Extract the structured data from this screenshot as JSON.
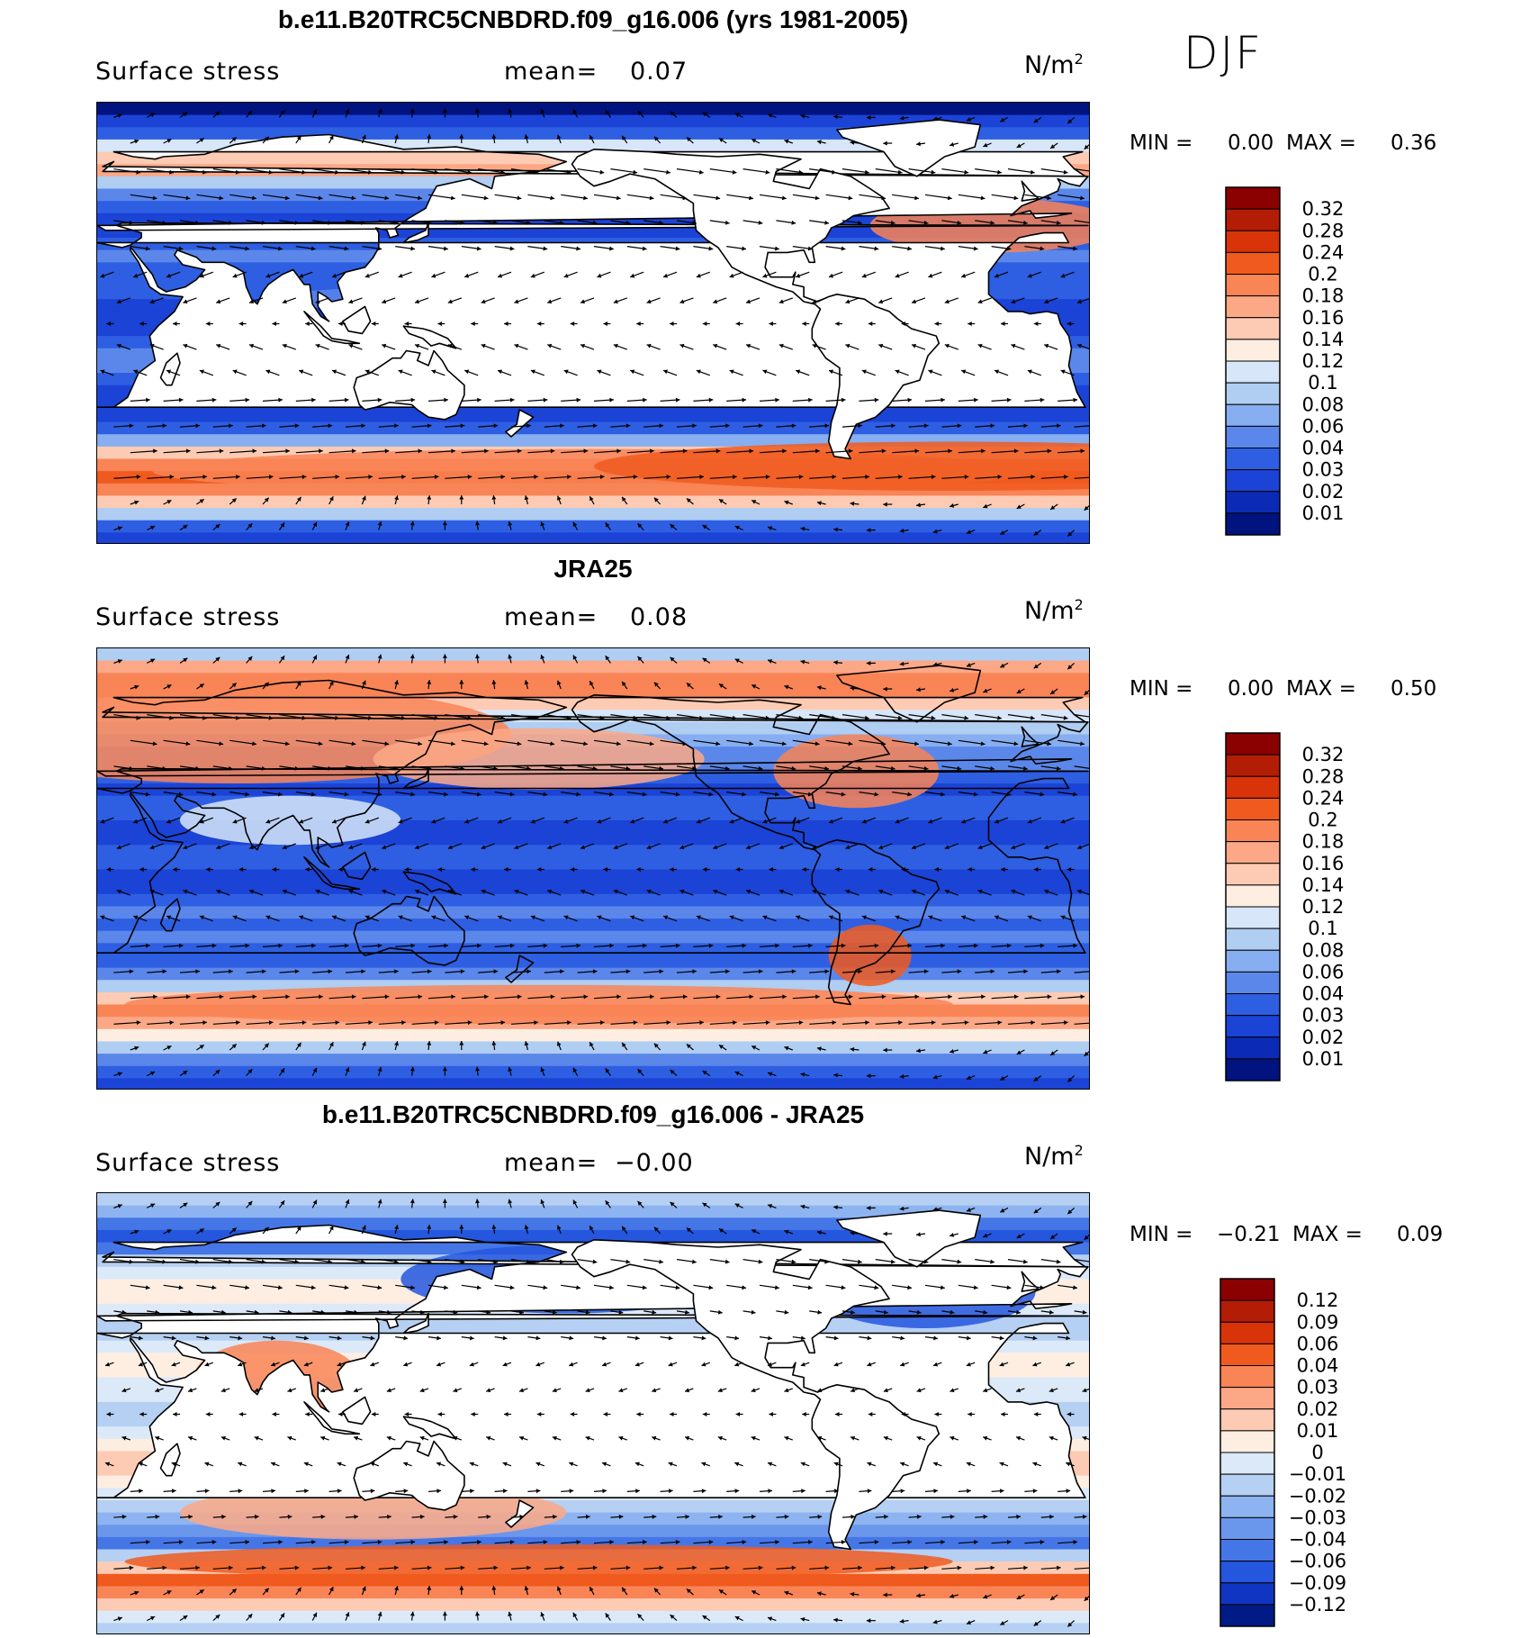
{
  "season": "DJF",
  "panels": [
    {
      "title": "b.e11.B20TRC5CNBDRD.f09_g16.006 (yrs 1981-2005)",
      "variable": "Surface stress",
      "mean_label": "mean=",
      "mean_value": "0.07",
      "units": "N/m",
      "units_exp": "2",
      "min_label": "MIN =",
      "min_value": "0.00",
      "max_label": "MAX =",
      "max_value": "0.36",
      "colorbar_labels": [
        "0.32",
        "0.28",
        "0.24",
        "0.2",
        "0.18",
        "0.16",
        "0.14",
        "0.12",
        "0.1",
        "0.08",
        "0.06",
        "0.04",
        "0.03",
        "0.02",
        "0.01"
      ],
      "palette": "positive"
    },
    {
      "title": "JRA25",
      "variable": "Surface stress",
      "mean_label": "mean=",
      "mean_value": "0.08",
      "units": "N/m",
      "units_exp": "2",
      "min_label": "MIN =",
      "min_value": "0.00",
      "max_label": "MAX =",
      "max_value": "0.50",
      "colorbar_labels": [
        "0.32",
        "0.28",
        "0.24",
        "0.2",
        "0.18",
        "0.16",
        "0.14",
        "0.12",
        "0.1",
        "0.08",
        "0.06",
        "0.04",
        "0.03",
        "0.02",
        "0.01"
      ],
      "palette": "positive"
    },
    {
      "title": "b.e11.B20TRC5CNBDRD.f09_g16.006 - JRA25",
      "variable": "Surface stress",
      "mean_label": "mean=",
      "mean_value": "−0.00",
      "units": "N/m",
      "units_exp": "2",
      "min_label": "MIN =",
      "min_value": "−0.21",
      "max_label": "MAX =",
      "max_value": "0.09",
      "colorbar_labels": [
        "0.12",
        "0.09",
        "0.06",
        "0.04",
        "0.03",
        "0.02",
        "0.01",
        "0",
        "−0.01",
        "−0.02",
        "−0.03",
        "−0.04",
        "−0.06",
        "−0.09",
        "−0.12"
      ],
      "palette": "difference"
    }
  ],
  "colors": {
    "positive": [
      "#8b0000",
      "#b31d06",
      "#d9330a",
      "#f05a1e",
      "#f98456",
      "#fca886",
      "#fdcbb3",
      "#feeee2",
      "#d7e6f8",
      "#b0cdf2",
      "#86aef0",
      "#5b87ea",
      "#2e5fe2",
      "#1b43d6",
      "#0b2bb6",
      "#00137e"
    ],
    "difference": [
      "#8b0000",
      "#b31d06",
      "#d9330a",
      "#f05a1e",
      "#f98456",
      "#fca886",
      "#fdcbb3",
      "#feeee2",
      "#dbe9f9",
      "#b6d0f3",
      "#8db4f0",
      "#6a96ec",
      "#4576e6",
      "#2556de",
      "#1035c2",
      "#001a86"
    ],
    "land": "#ffffff",
    "coast": "#000000"
  }
}
